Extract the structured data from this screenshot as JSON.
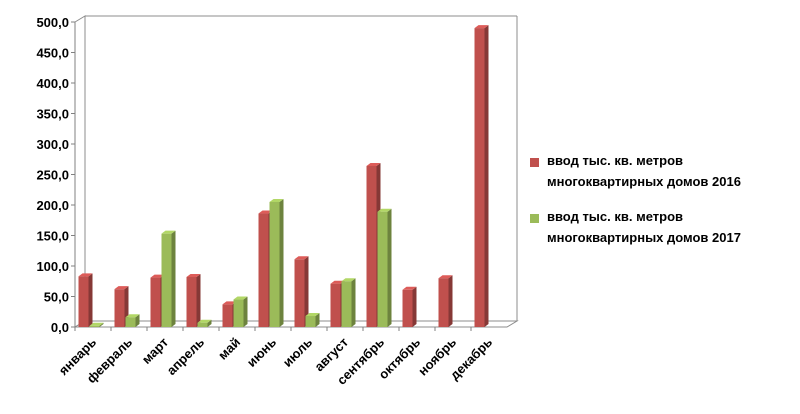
{
  "chart_data": {
    "type": "bar",
    "categories": [
      "январь",
      "февраль",
      "март",
      "апрель",
      "май",
      "июнь",
      "июль",
      "август",
      "сентябрь",
      "октябрь",
      "ноябрь",
      "декабрь"
    ],
    "series": [
      {
        "name": "ввод тыс. кв. метров многоквартирных домов 2016",
        "name_lines": [
          "ввод тыс. кв. метров",
          "многоквартирных домов 2016"
        ],
        "color": "#c0504d",
        "values": [
          83,
          62,
          81,
          82,
          37,
          186,
          111,
          71,
          264,
          61,
          80,
          490
        ]
      },
      {
        "name": "ввод тыс. кв. метров многоквартирных домов 2017",
        "name_lines": [
          "ввод тыс. кв. метров",
          "многоквартирных домов 2017"
        ],
        "color": "#9bbb59",
        "values": [
          2,
          16,
          153,
          7,
          45,
          205,
          18,
          75,
          189,
          null,
          null,
          null
        ]
      }
    ],
    "y_ticks": [
      "0,0",
      "50,0",
      "100,0",
      "150,0",
      "200,0",
      "250,0",
      "300,0",
      "350,0",
      "400,0",
      "450,0",
      "500,0"
    ],
    "ylim": [
      0,
      500
    ],
    "grid": false,
    "legend_position": "right",
    "title": "",
    "xlabel": "",
    "ylabel": ""
  }
}
